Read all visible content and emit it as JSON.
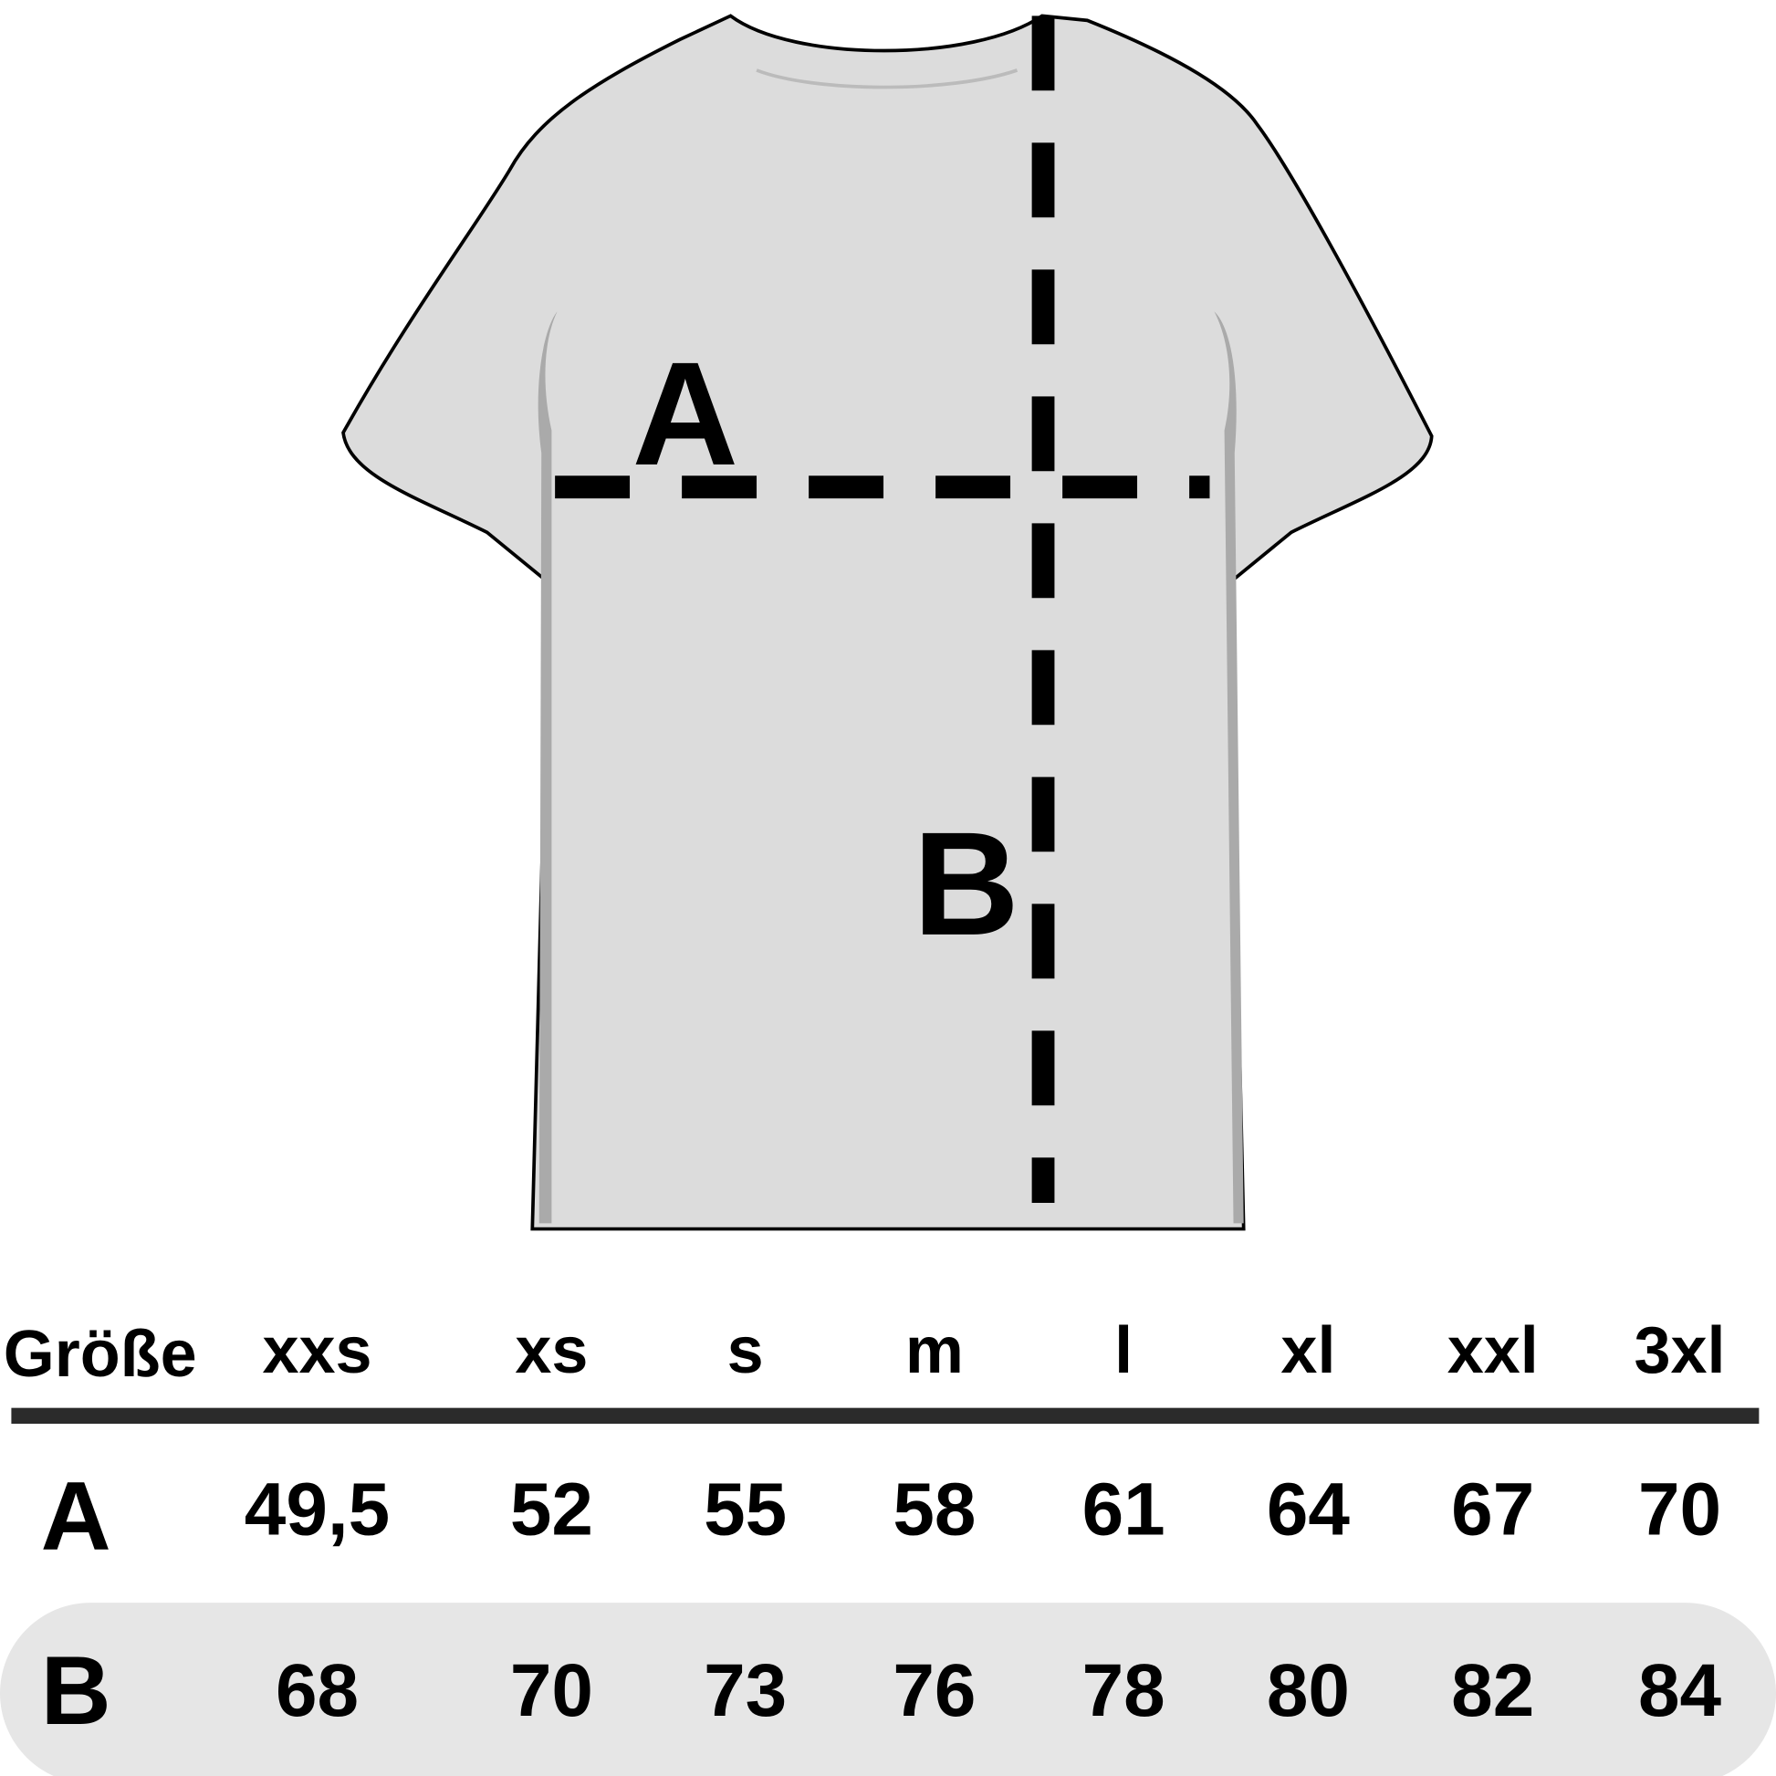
{
  "diagram": {
    "label_a": "A",
    "label_b": "B",
    "shirt_fill": "#dcdcdc",
    "band_fill": "#e6e6e6"
  },
  "table": {
    "header_label": "Größe",
    "sizes": [
      "xxs",
      "xs",
      "s",
      "m",
      "l",
      "xl",
      "xxl",
      "3xl"
    ],
    "rows": [
      {
        "label": "A",
        "values": [
          "49,5",
          "52",
          "55",
          "58",
          "61",
          "64",
          "67",
          "70"
        ]
      },
      {
        "label": "B",
        "values": [
          "68",
          "70",
          "73",
          "76",
          "78",
          "80",
          "82",
          "84"
        ]
      }
    ]
  }
}
